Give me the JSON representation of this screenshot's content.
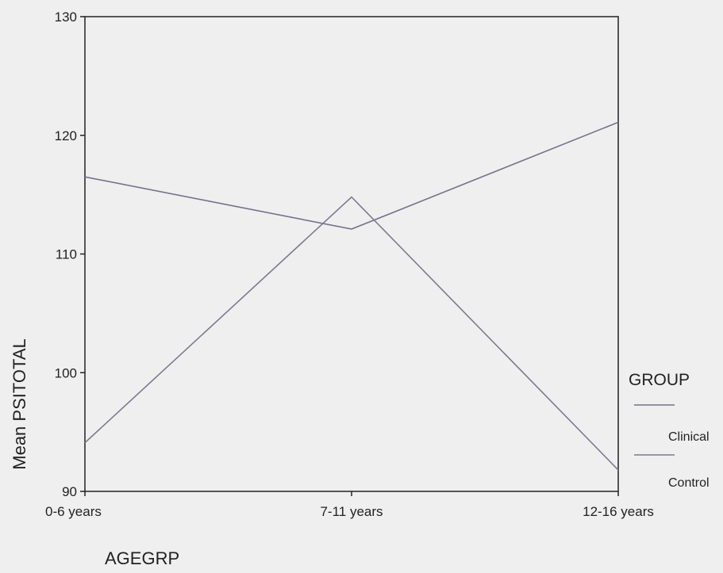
{
  "chart_data": {
    "type": "line",
    "categories": [
      "0-6 years",
      "7-11 years",
      "12-16 years"
    ],
    "series": [
      {
        "name": "Clinical",
        "values": [
          116.5,
          112.1,
          121.1
        ],
        "color": "#77718a"
      },
      {
        "name": "Control",
        "values": [
          94.1,
          114.8,
          91.8
        ],
        "color": "#7f7a8f"
      }
    ],
    "title": "",
    "xlabel": "AGEGRP",
    "ylabel": "Mean PSITOTAL",
    "ylim": [
      90,
      130
    ],
    "yticks": [
      90,
      100,
      110,
      120,
      130
    ],
    "grid": false,
    "legend": {
      "title": "GROUP",
      "placement": "right"
    }
  },
  "colors": {
    "background": "#efefef",
    "axis": "#222222"
  }
}
